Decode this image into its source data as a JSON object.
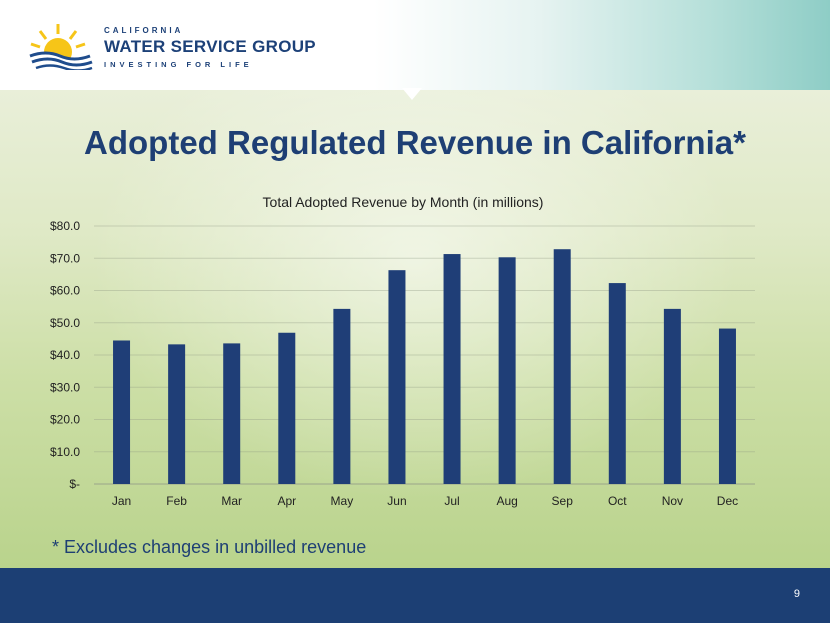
{
  "header": {
    "company_line1": "CALIFORNIA",
    "company_line2": "WATER SERVICE GROUP",
    "company_tagline": "INVESTING FOR LIFE"
  },
  "slide": {
    "title": "Adopted Regulated Revenue in California*",
    "footnote": "* Excludes changes in unbilled revenue",
    "page_number": "9"
  },
  "colors": {
    "bar": "#1f3e77",
    "title": "#1e3f74",
    "footer": "#1c3f74"
  },
  "chart_data": {
    "type": "bar",
    "title": "Total Adopted Revenue by Month (in millions)",
    "categories": [
      "Jan",
      "Feb",
      "Mar",
      "Apr",
      "May",
      "Jun",
      "Jul",
      "Aug",
      "Sep",
      "Oct",
      "Nov",
      "Dec"
    ],
    "values": [
      44.5,
      43.3,
      43.6,
      46.9,
      54.3,
      66.3,
      71.3,
      70.3,
      72.8,
      62.3,
      54.3,
      48.2
    ],
    "ylim": [
      0,
      80
    ],
    "yticks": [
      0,
      10,
      20,
      30,
      40,
      50,
      60,
      70,
      80
    ],
    "ytick_labels": [
      "$-",
      "$10.0",
      "$20.0",
      "$30.0",
      "$40.0",
      "$50.0",
      "$60.0",
      "$70.0",
      "$80.0"
    ],
    "xlabel": "",
    "ylabel": "",
    "grid": true
  }
}
